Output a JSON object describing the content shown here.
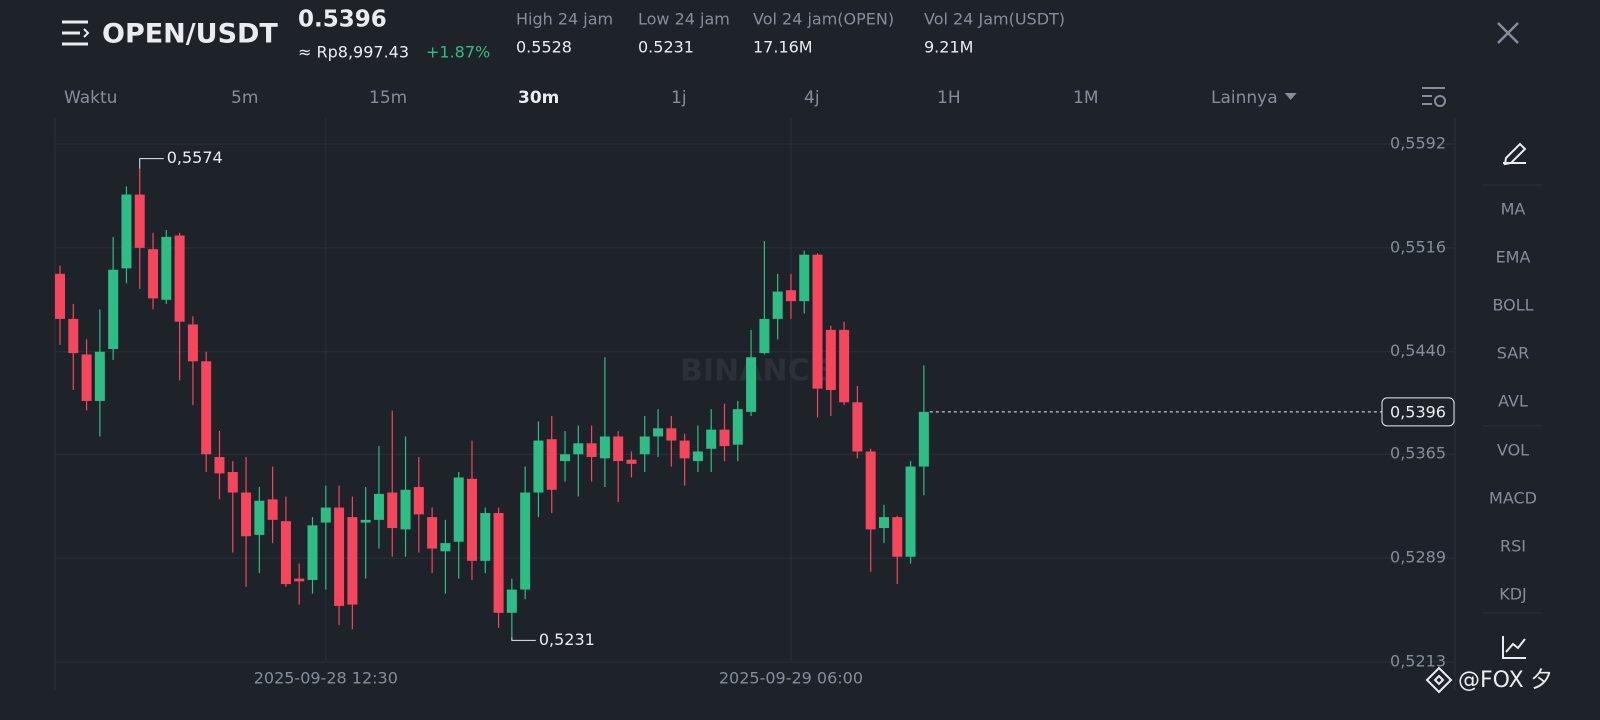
{
  "header": {
    "pair": "OPEN/USDT",
    "price": "0.5396",
    "fiat": "≈ Rp8,997.43",
    "change": "+1.87%",
    "stats": [
      {
        "label": "High 24 jam",
        "value": "0.5528"
      },
      {
        "label": "Low 24 jam",
        "value": "0.5231"
      },
      {
        "label": "Vol 24 jam(OPEN)",
        "value": "17.16M"
      },
      {
        "label": "Vol 24 Jam(USDT)",
        "value": "9.21M"
      }
    ]
  },
  "timeframes": [
    "Waktu",
    "5m",
    "15m",
    "30m",
    "1j",
    "4j",
    "1H",
    "1M",
    "Lainnya"
  ],
  "indicators": [
    "MA",
    "EMA",
    "BOLL",
    "SAR",
    "AVL",
    "VOL",
    "MACD",
    "RSI",
    "KDJ"
  ],
  "watermark": "BINANCE",
  "credit": "@FOX 夕",
  "chart_data": {
    "type": "candlestick",
    "categories": [
      null,
      null,
      null,
      null,
      null,
      null,
      null,
      null,
      null,
      null,
      null,
      null,
      null,
      null,
      null,
      null,
      null,
      null,
      null,
      null,
      "2025-09-28 12:30",
      null,
      null,
      null,
      null,
      null,
      null,
      null,
      null,
      null,
      null,
      null,
      null,
      null,
      null,
      null,
      null,
      null,
      null,
      null,
      null,
      null,
      null,
      null,
      null,
      null,
      null,
      null,
      null,
      null,
      null,
      null,
      null,
      null,
      null,
      "2025-09-29 06:00",
      null,
      null,
      null,
      null,
      null,
      null,
      null,
      null,
      null,
      null
    ],
    "open": [
      0.5497,
      0.5464,
      0.5438,
      0.5404,
      0.5442,
      0.5501,
      0.5555,
      0.5515,
      0.5478,
      0.5525,
      0.546,
      0.5433,
      0.5363,
      0.5352,
      0.5337,
      0.5306,
      0.5332,
      0.5316,
      0.5274,
      0.5273,
      0.5315,
      0.5326,
      0.5319,
      0.5315,
      0.5317,
      0.5337,
      0.531,
      0.5341,
      0.5319,
      0.5294,
      0.5301,
      0.5347,
      0.5287,
      0.5322,
      0.5249,
      0.5266,
      0.5337,
      0.5376,
      0.536,
      0.5365,
      0.5373,
      0.5362,
      0.5378,
      0.5361,
      0.5365,
      0.5378,
      0.5384,
      0.5375,
      0.536,
      0.5369,
      0.5383,
      0.5372,
      0.5396,
      0.5439,
      0.5464,
      0.5485,
      0.5477,
      0.5511,
      0.5456,
      0.5456,
      0.5403,
      0.5367,
      0.5311,
      0.5319,
      0.529,
      0.5356
    ],
    "high": [
      0.5503,
      0.5475,
      0.5449,
      0.5471,
      0.5524,
      0.5561,
      0.5574,
      0.5527,
      0.5529,
      0.5527,
      0.5466,
      0.544,
      0.5382,
      0.536,
      0.5363,
      0.5341,
      0.5356,
      0.5334,
      0.5285,
      0.5319,
      0.5342,
      0.5342,
      0.5334,
      0.5341,
      0.5371,
      0.5397,
      0.5378,
      0.5363,
      0.5326,
      0.5317,
      0.5352,
      0.5375,
      0.5326,
      0.5326,
      0.5274,
      0.5356,
      0.5389,
      0.5393,
      0.5382,
      0.5386,
      0.5386,
      0.5436,
      0.5382,
      0.5367,
      0.5393,
      0.5398,
      0.5393,
      0.538,
      0.5386,
      0.5398,
      0.5402,
      0.5404,
      0.5456,
      0.5521,
      0.5497,
      0.5497,
      0.5514,
      0.5512,
      0.5459,
      0.5462,
      0.5415,
      0.5369,
      0.5328,
      0.532,
      0.536,
      0.543
    ],
    "low": [
      0.5445,
      0.5412,
      0.5397,
      0.5378,
      0.5434,
      0.549,
      0.5486,
      0.5471,
      0.5475,
      0.5419,
      0.5401,
      0.5352,
      0.5332,
      0.5293,
      0.5268,
      0.5278,
      0.53,
      0.5268,
      0.5255,
      0.5263,
      0.5266,
      0.524,
      0.5237,
      0.5274,
      0.5296,
      0.529,
      0.529,
      0.5293,
      0.5278,
      0.5263,
      0.5274,
      0.5273,
      0.5278,
      0.5238,
      0.5231,
      0.5259,
      0.5319,
      0.5322,
      0.5345,
      0.5334,
      0.5345,
      0.5341,
      0.533,
      0.5348,
      0.5352,
      0.5363,
      0.5356,
      0.5342,
      0.5352,
      0.5352,
      0.536,
      0.536,
      0.5393,
      0.5438,
      0.5449,
      0.5464,
      0.5468,
      0.5392,
      0.5393,
      0.5401,
      0.5362,
      0.5279,
      0.53,
      0.527,
      0.5285,
      0.5335
    ],
    "close": [
      0.5464,
      0.5439,
      0.5404,
      0.544,
      0.55,
      0.5555,
      0.5516,
      0.5479,
      0.5524,
      0.5462,
      0.5433,
      0.5365,
      0.5351,
      0.5337,
      0.5305,
      0.5331,
      0.5317,
      0.527,
      0.5272,
      0.5313,
      0.5326,
      0.5254,
      0.5255,
      0.5317,
      0.5336,
      0.5311,
      0.5339,
      0.5321,
      0.5296,
      0.53,
      0.5348,
      0.5287,
      0.5322,
      0.5249,
      0.5266,
      0.5337,
      0.5375,
      0.5339,
      0.5365,
      0.5373,
      0.5363,
      0.5378,
      0.536,
      0.5358,
      0.5378,
      0.5384,
      0.5375,
      0.5362,
      0.5367,
      0.5383,
      0.5371,
      0.5398,
      0.5436,
      0.5464,
      0.5484,
      0.5477,
      0.5511,
      0.5413,
      0.5412,
      0.5403,
      0.5367,
      0.531,
      0.5319,
      0.529,
      0.5356,
      0.5396
    ],
    "up_color": "#2ebd85",
    "down_color": "#f6465d",
    "ylim": [
      0.5213,
      0.5611
    ],
    "yticks": [
      {
        "value": 0.5592,
        "label": "0,5592"
      },
      {
        "value": 0.5516,
        "label": "0,5516"
      },
      {
        "value": 0.544,
        "label": "0,5440"
      },
      {
        "value": 0.5365,
        "label": "0,5365"
      },
      {
        "value": 0.5289,
        "label": "0,5289"
      },
      {
        "value": 0.5213,
        "label": "0,5213"
      }
    ],
    "grid": true,
    "annotations": [
      {
        "index": 6,
        "value": 0.5574,
        "label": "0,5574"
      },
      {
        "index": 34,
        "value": 0.5231,
        "label": "0,5231"
      }
    ],
    "last_price": {
      "value": 0.5396,
      "label": "0,5396"
    }
  }
}
